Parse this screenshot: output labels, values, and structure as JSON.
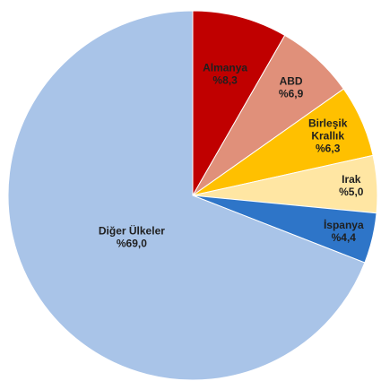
{
  "chart_data": {
    "type": "pie",
    "title": "",
    "slices": [
      {
        "label_lines": [
          "Almanya"
        ],
        "value_label": "%8,3",
        "value": 8.3,
        "color": "#C00000",
        "text_color": "#1f1f1f"
      },
      {
        "label_lines": [
          "ABD"
        ],
        "value_label": "%6,9",
        "value": 6.9,
        "color": "#E0907A",
        "text_color": "#1f1f1f"
      },
      {
        "label_lines": [
          "Birleşik",
          "Krallık"
        ],
        "value_label": "%6,3",
        "value": 6.3,
        "color": "#FFC000",
        "text_color": "#1f1f1f"
      },
      {
        "label_lines": [
          "Irak"
        ],
        "value_label": "%5,0",
        "value": 5.0,
        "color": "#FFE6A3",
        "text_color": "#1f1f1f"
      },
      {
        "label_lines": [
          "İspanya"
        ],
        "value_label": "%4,4",
        "value": 4.4,
        "color": "#2E75C8",
        "text_color": "#1f1f1f"
      },
      {
        "label_lines": [
          "Diğer Ülkeler"
        ],
        "value_label": "%69,0",
        "value": 69.0,
        "color": "#A9C4E8",
        "text_color": "#1f1f1f"
      }
    ],
    "legend": "none"
  }
}
